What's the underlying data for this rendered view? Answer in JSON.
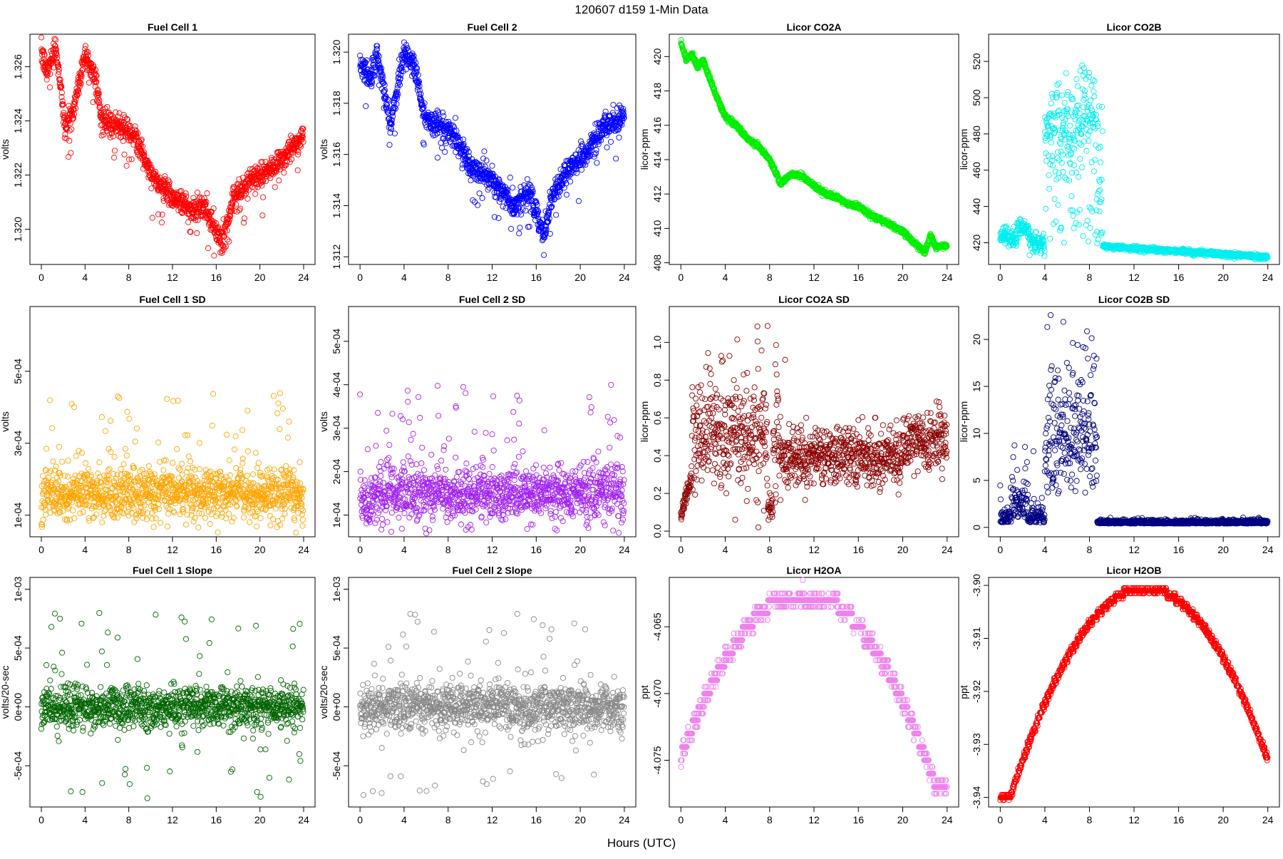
{
  "figure": {
    "title": "120607    d159    1-Min Data",
    "xlabel": "Hours (UTC)"
  },
  "chart_data": [
    {
      "type": "scatter",
      "title": "Fuel Cell 1",
      "ylabel": "volts",
      "color": "#ff0000",
      "xlim": [
        0,
        24
      ],
      "ylim": [
        1.3187,
        1.3272
      ],
      "xticks": [
        "0",
        "4",
        "8",
        "12",
        "16",
        "20",
        "24"
      ],
      "yticks": [
        {
          "v": 1.32,
          "label": "1.320"
        },
        {
          "v": 1.322,
          "label": "1.322"
        },
        {
          "v": 1.324,
          "label": "1.324"
        },
        {
          "v": 1.326,
          "label": "1.326"
        }
      ],
      "shape": {
        "type": "walk",
        "points": [
          [
            0,
            1.3265
          ],
          [
            0.5,
            1.3258
          ],
          [
            1.3,
            1.3268
          ],
          [
            2.2,
            1.3238
          ],
          [
            3,
            1.3245
          ],
          [
            4,
            1.3265
          ],
          [
            5,
            1.3255
          ],
          [
            5.5,
            1.324
          ],
          [
            7,
            1.3238
          ],
          [
            8.5,
            1.3235
          ],
          [
            10,
            1.322
          ],
          [
            12,
            1.3212
          ],
          [
            14,
            1.3207
          ],
          [
            15,
            1.3208
          ],
          [
            16.5,
            1.3195
          ],
          [
            17.5,
            1.321
          ],
          [
            19,
            1.3218
          ],
          [
            21,
            1.3222
          ],
          [
            24,
            1.3235
          ]
        ],
        "noise": 0.00035,
        "outliers": 0.05,
        "outlierSpread": 0.0015
      }
    },
    {
      "type": "scatter",
      "title": "Fuel Cell 2",
      "ylabel": "volts",
      "color": "#0000ff",
      "xlim": [
        0,
        24
      ],
      "ylim": [
        1.3117,
        1.3207
      ],
      "xticks": [
        "0",
        "4",
        "8",
        "12",
        "16",
        "20",
        "24"
      ],
      "yticks": [
        {
          "v": 1.312,
          "label": "1.312"
        },
        {
          "v": 1.314,
          "label": "1.314"
        },
        {
          "v": 1.316,
          "label": "1.316"
        },
        {
          "v": 1.318,
          "label": "1.318"
        },
        {
          "v": 1.32,
          "label": "1.320"
        }
      ],
      "shape": {
        "type": "walk",
        "points": [
          [
            0,
            1.3195
          ],
          [
            1,
            1.319
          ],
          [
            1.5,
            1.32
          ],
          [
            2.8,
            1.3172
          ],
          [
            4,
            1.32
          ],
          [
            5,
            1.3195
          ],
          [
            5.8,
            1.3175
          ],
          [
            7,
            1.3172
          ],
          [
            8.5,
            1.3168
          ],
          [
            10,
            1.3155
          ],
          [
            12,
            1.315
          ],
          [
            14,
            1.314
          ],
          [
            15.5,
            1.3145
          ],
          [
            16.7,
            1.3128
          ],
          [
            17.5,
            1.3145
          ],
          [
            19,
            1.3155
          ],
          [
            20.5,
            1.316
          ],
          [
            22,
            1.317
          ],
          [
            24,
            1.3175
          ]
        ],
        "noise": 0.0004,
        "outliers": 0.05,
        "outlierSpread": 0.0015
      }
    },
    {
      "type": "scatter",
      "title": "Licor CO2A",
      "ylabel": "licor-ppm",
      "color": "#00ee00",
      "xlim": [
        0,
        24
      ],
      "ylim": [
        407.9,
        421.3
      ],
      "xticks": [
        "0",
        "4",
        "8",
        "12",
        "16",
        "20",
        "24"
      ],
      "yticks": [
        {
          "v": 408,
          "label": "408"
        },
        {
          "v": 410,
          "label": "410"
        },
        {
          "v": 412,
          "label": "412"
        },
        {
          "v": 414,
          "label": "414"
        },
        {
          "v": 416,
          "label": "416"
        },
        {
          "v": 418,
          "label": "418"
        },
        {
          "v": 420,
          "label": "420"
        }
      ],
      "shape": {
        "type": "walk",
        "points": [
          [
            0,
            420.8
          ],
          [
            0.5,
            419.8
          ],
          [
            1,
            420.2
          ],
          [
            1.5,
            419.4
          ],
          [
            2,
            419.8
          ],
          [
            3,
            418.0
          ],
          [
            4,
            416.5
          ],
          [
            5,
            416.0
          ],
          [
            6,
            415.2
          ],
          [
            7,
            414.8
          ],
          [
            8,
            414.0
          ],
          [
            9,
            412.6
          ],
          [
            10,
            413.2
          ],
          [
            11,
            413.0
          ],
          [
            12,
            412.5
          ],
          [
            13,
            412.0
          ],
          [
            14,
            411.8
          ],
          [
            15,
            411.4
          ],
          [
            16,
            411.3
          ],
          [
            17,
            410.8
          ],
          [
            18,
            410.5
          ],
          [
            19,
            410.2
          ],
          [
            20,
            409.8
          ],
          [
            21,
            409.2
          ],
          [
            22,
            408.6
          ],
          [
            22.5,
            409.6
          ],
          [
            23,
            408.9
          ],
          [
            24,
            409.0
          ]
        ],
        "noise": 0.12,
        "outliers": 0.0,
        "outlierSpread": 0.3
      }
    },
    {
      "type": "scatter",
      "title": "Licor CO2B",
      "ylabel": "licor-ppm",
      "color": "#00eeee",
      "xlim": [
        0,
        24
      ],
      "ylim": [
        408,
        535
      ],
      "xticks": [
        "0",
        "4",
        "8",
        "12",
        "16",
        "20",
        "24"
      ],
      "yticks": [
        {
          "v": 420,
          "label": "420"
        },
        {
          "v": 440,
          "label": "440"
        },
        {
          "v": 460,
          "label": "460"
        },
        {
          "v": 480,
          "label": "480"
        },
        {
          "v": 500,
          "label": "500"
        },
        {
          "v": 520,
          "label": "520"
        }
      ],
      "shape": {
        "type": "co2b"
      }
    },
    {
      "type": "scatter",
      "title": "Fuel Cell 1 SD",
      "ylabel": "volts",
      "color": "#ffa500",
      "xlim": [
        0,
        24
      ],
      "ylim": [
        4e-05,
        0.00068
      ],
      "xticks": [
        "0",
        "4",
        "8",
        "12",
        "16",
        "20",
        "24"
      ],
      "yticks": [
        {
          "v": 0.0001,
          "label": "1e-04"
        },
        {
          "v": 0.0003,
          "label": "3e-04"
        },
        {
          "v": 0.0005,
          "label": "5e-04"
        }
      ],
      "shape": {
        "type": "noise",
        "base": 0.00016,
        "noise": 3.5e-05,
        "spikes": 0.06,
        "spikeMax": 0.00045
      }
    },
    {
      "type": "scatter",
      "title": "Fuel Cell 2 SD",
      "ylabel": "volts",
      "color": "#a020f0",
      "xlim": [
        0,
        24
      ],
      "ylim": [
        5e-05,
        0.00058
      ],
      "xticks": [
        "0",
        "4",
        "8",
        "12",
        "16",
        "20",
        "24"
      ],
      "yticks": [
        {
          "v": 0.0001,
          "label": "1e-04"
        },
        {
          "v": 0.0002,
          "label": "2e-04"
        },
        {
          "v": 0.0003,
          "label": "3e-04"
        },
        {
          "v": 0.0004,
          "label": "4e-04"
        },
        {
          "v": 0.0005,
          "label": "5e-04"
        }
      ],
      "shape": {
        "type": "noise",
        "base": 0.00015,
        "noise": 3e-05,
        "spikes": 0.07,
        "spikeMax": 0.0004
      }
    },
    {
      "type": "scatter",
      "title": "Licor CO2A SD",
      "ylabel": "licor-ppm",
      "color": "#8b0000",
      "xlim": [
        0,
        24
      ],
      "ylim": [
        -0.03,
        1.19
      ],
      "xticks": [
        "0",
        "4",
        "8",
        "12",
        "16",
        "20",
        "24"
      ],
      "yticks": [
        {
          "v": 0.0,
          "label": "0.0"
        },
        {
          "v": 0.2,
          "label": "0.2"
        },
        {
          "v": 0.4,
          "label": "0.4"
        },
        {
          "v": 0.6,
          "label": "0.6"
        },
        {
          "v": 0.8,
          "label": "0.8"
        },
        {
          "v": 1.0,
          "label": "1.0"
        }
      ],
      "shape": {
        "type": "co2asd"
      }
    },
    {
      "type": "scatter",
      "title": "Licor CO2B SD",
      "ylabel": "licor-ppm",
      "color": "#000080",
      "xlim": [
        0,
        24
      ],
      "ylim": [
        -1,
        23.5
      ],
      "xticks": [
        "0",
        "4",
        "8",
        "12",
        "16",
        "20",
        "24"
      ],
      "yticks": [
        {
          "v": 0,
          "label": "0"
        },
        {
          "v": 5,
          "label": "5"
        },
        {
          "v": 10,
          "label": "10"
        },
        {
          "v": 15,
          "label": "15"
        },
        {
          "v": 20,
          "label": "20"
        }
      ],
      "shape": {
        "type": "co2bsd"
      }
    },
    {
      "type": "scatter",
      "title": "Fuel Cell 1 Slope",
      "ylabel": "volts/20-sec",
      "color": "#006400",
      "xlim": [
        0,
        24
      ],
      "ylim": [
        -0.00085,
        0.0011
      ],
      "xticks": [
        "0",
        "4",
        "8",
        "12",
        "16",
        "20",
        "24"
      ],
      "yticks": [
        {
          "v": -0.0005,
          "label": "-5e-04"
        },
        {
          "v": 0,
          "label": "0e+00"
        },
        {
          "v": 0.0005,
          "label": "5e-04"
        },
        {
          "v": 0.001,
          "label": "1e-03"
        }
      ],
      "shape": {
        "type": "slope",
        "noise": 9e-05,
        "spikes": 0.07,
        "spikeMax": 0.0008
      }
    },
    {
      "type": "scatter",
      "title": "Fuel Cell 2 Slope",
      "ylabel": "volts/20-sec",
      "color": "#888888",
      "xlim": [
        0,
        24
      ],
      "ylim": [
        -0.00085,
        0.0011
      ],
      "xticks": [
        "0",
        "4",
        "8",
        "12",
        "16",
        "20",
        "24"
      ],
      "yticks": [
        {
          "v": -0.0005,
          "label": "-5e-04"
        },
        {
          "v": 0,
          "label": "0e+00"
        },
        {
          "v": 0.0005,
          "label": "5e-04"
        },
        {
          "v": 0.001,
          "label": "1e-03"
        }
      ],
      "shape": {
        "type": "slope",
        "noise": 0.0001,
        "spikes": 0.07,
        "spikeMax": 0.0008
      }
    },
    {
      "type": "scatter",
      "title": "Licor H2OA",
      "ylabel": "ppt",
      "color": "#ee82ee",
      "xlim": [
        0,
        24
      ],
      "ylim": [
        -4.0785,
        -4.0613
      ],
      "xticks": [
        "0",
        "4",
        "8",
        "12",
        "16",
        "20",
        "24"
      ],
      "yticks": [
        {
          "v": -4.075,
          "label": "-4.075"
        },
        {
          "v": -4.07,
          "label": "-4.070"
        },
        {
          "v": -4.065,
          "label": "-4.065"
        }
      ],
      "shape": {
        "type": "arch",
        "min": -4.0775,
        "max": -4.0625,
        "peak": 11,
        "step": 0.001
      }
    },
    {
      "type": "scatter",
      "title": "Licor H2OB",
      "ylabel": "ppt",
      "color": "#ff0000",
      "xlim": [
        0,
        24
      ],
      "ylim": [
        -3.9418,
        -3.8985
      ],
      "xticks": [
        "0",
        "4",
        "8",
        "12",
        "16",
        "20",
        "24"
      ],
      "yticks": [
        {
          "v": -3.94,
          "label": "-3.94"
        },
        {
          "v": -3.93,
          "label": "-3.93"
        },
        {
          "v": -3.92,
          "label": "-3.92"
        },
        {
          "v": -3.91,
          "label": "-3.91"
        },
        {
          "v": -3.9,
          "label": "-3.90"
        }
      ],
      "shape": {
        "type": "arch",
        "min": -3.9405,
        "max": -3.9005,
        "peak": 13,
        "step": 0.001
      }
    }
  ]
}
